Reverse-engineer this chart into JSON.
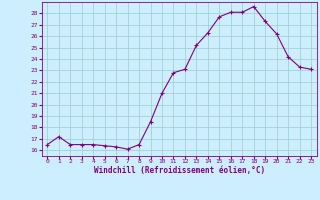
{
  "x": [
    0,
    1,
    2,
    3,
    4,
    5,
    6,
    7,
    8,
    9,
    10,
    11,
    12,
    13,
    14,
    15,
    16,
    17,
    18,
    19,
    20,
    21,
    22,
    23
  ],
  "y": [
    16.5,
    17.2,
    16.5,
    16.5,
    16.5,
    16.4,
    16.3,
    16.1,
    16.5,
    18.5,
    21.0,
    22.8,
    23.1,
    25.2,
    26.3,
    27.7,
    28.1,
    28.1,
    28.6,
    27.3,
    26.2,
    24.2,
    23.3,
    23.1
  ],
  "line_color": "#800080",
  "marker": "+",
  "marker_color": "#800080",
  "bg_color": "#cceeff",
  "grid_color": "#99cccc",
  "xlabel": "Windchill (Refroidissement éolien,°C)",
  "xlabel_color": "#800080",
  "tick_color": "#800080",
  "ylim": [
    15.5,
    29.0
  ],
  "yticks": [
    16,
    17,
    18,
    19,
    20,
    21,
    22,
    23,
    24,
    25,
    26,
    27,
    28
  ],
  "xlim": [
    -0.5,
    23.5
  ],
  "xticks": [
    0,
    1,
    2,
    3,
    4,
    5,
    6,
    7,
    8,
    9,
    10,
    11,
    12,
    13,
    14,
    15,
    16,
    17,
    18,
    19,
    20,
    21,
    22,
    23
  ]
}
